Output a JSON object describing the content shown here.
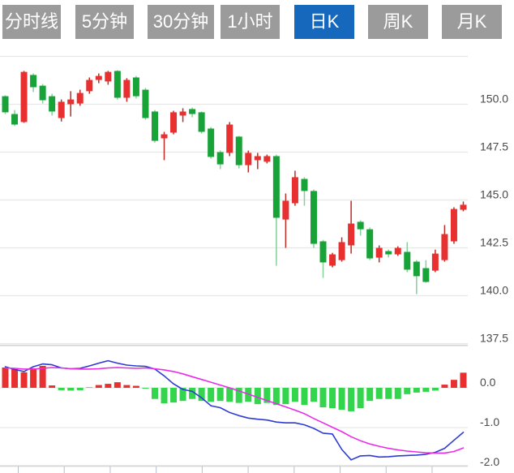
{
  "toolbar": {
    "tabs": [
      {
        "name": "tab-timeline",
        "label": "分时线",
        "active": false
      },
      {
        "name": "tab-5min",
        "label": "5分钟",
        "active": false
      },
      {
        "name": "tab-30min",
        "label": "30分钟",
        "active": false
      },
      {
        "name": "tab-1hour",
        "label": "1小时",
        "active": false
      },
      {
        "name": "tab-daily-k",
        "label": "日K",
        "active": true
      },
      {
        "name": "tab-weekly-k",
        "label": "周K",
        "active": false
      },
      {
        "name": "tab-monthly-k",
        "label": "月K",
        "active": false
      }
    ]
  },
  "colors": {
    "background": "#ffffff",
    "tab_active_bg": "#1568bb",
    "tab_inactive_bg": "#9b9b9b",
    "tab_text": "#ffffff",
    "up": "#e93030",
    "up_wick": "#bf2a25",
    "down": "#17a337",
    "down_wick": "#86cf98",
    "hist_pos": "#e93030",
    "hist_neg": "#33d54d",
    "dif_line": "#2d3bd4",
    "dea_line": "#ea2cea",
    "grid": "#e7e7e7",
    "border": "#d6d6d6",
    "tick": "#b9bec9",
    "axis_text": "#4a4a4a"
  },
  "chart_data": {
    "type": "candlestick",
    "title": "",
    "legend": "none",
    "grid": "horizontal-only",
    "price_axis_labels": [
      "150.0",
      "147.5",
      "145.0",
      "142.5",
      "140.0",
      "137.5"
    ],
    "price_gridlines": [
      152.5,
      150.0,
      147.5,
      145.0,
      142.5,
      140.0,
      137.5
    ],
    "price_axis_side": "right",
    "macd_axis_labels": [
      "0.0",
      "-1.0",
      "-2.0"
    ],
    "macd_gridline_values": [
      0,
      -1,
      -2
    ],
    "x_axis_tick_count": 10,
    "candles_ohlc": [
      [
        150.42,
        150.47,
        149.49,
        149.58
      ],
      [
        149.49,
        149.7,
        148.86,
        148.94
      ],
      [
        149.07,
        151.74,
        149.03,
        151.69
      ],
      [
        151.53,
        151.61,
        150.64,
        150.89
      ],
      [
        150.97,
        151.06,
        150.04,
        150.21
      ],
      [
        150.42,
        150.55,
        149.41,
        149.62
      ],
      [
        149.28,
        150.25,
        149.1,
        150.13
      ],
      [
        150.0,
        150.68,
        149.36,
        150.25
      ],
      [
        150.04,
        150.76,
        149.92,
        150.59
      ],
      [
        150.68,
        151.4,
        150.55,
        151.27
      ],
      [
        151.27,
        151.61,
        151.1,
        151.48
      ],
      [
        151.19,
        151.74,
        151.02,
        151.69
      ],
      [
        151.74,
        151.78,
        150.25,
        150.34
      ],
      [
        150.34,
        151.36,
        150.13,
        151.27
      ],
      [
        151.4,
        151.48,
        150.3,
        150.42
      ],
      [
        150.76,
        150.85,
        149.19,
        149.28
      ],
      [
        149.62,
        149.7,
        148.0,
        148.09
      ],
      [
        148.22,
        148.56,
        147.08,
        148.43
      ],
      [
        148.52,
        149.66,
        148.43,
        149.58
      ],
      [
        149.41,
        149.79,
        149.07,
        149.62
      ],
      [
        149.75,
        149.83,
        149.32,
        149.49
      ],
      [
        149.58,
        149.62,
        148.47,
        148.56
      ],
      [
        148.73,
        148.81,
        147.16,
        147.25
      ],
      [
        147.5,
        147.59,
        146.61,
        146.86
      ],
      [
        147.46,
        149.07,
        147.29,
        148.94
      ],
      [
        148.31,
        148.35,
        146.65,
        146.82
      ],
      [
        146.82,
        147.58,
        146.44,
        147.46
      ],
      [
        147.08,
        147.46,
        146.61,
        147.29
      ],
      [
        147.0,
        147.37,
        146.91,
        147.29
      ],
      [
        147.29,
        147.37,
        141.57,
        144.07
      ],
      [
        143.98,
        145.34,
        142.5,
        144.96
      ],
      [
        144.83,
        146.53,
        144.7,
        146.19
      ],
      [
        146.1,
        146.19,
        144.7,
        145.47
      ],
      [
        145.47,
        145.55,
        142.5,
        142.71
      ],
      [
        142.84,
        142.92,
        140.93,
        141.74
      ],
      [
        141.57,
        142.24,
        141.48,
        142.16
      ],
      [
        141.86,
        143.05,
        141.78,
        142.8
      ],
      [
        142.63,
        144.96,
        142.2,
        143.77
      ],
      [
        143.86,
        143.94,
        143.14,
        143.47
      ],
      [
        143.47,
        143.56,
        141.86,
        141.95
      ],
      [
        141.99,
        142.63,
        141.74,
        142.5
      ],
      [
        142.33,
        142.41,
        142.0,
        142.16
      ],
      [
        142.16,
        142.58,
        142.08,
        142.5
      ],
      [
        142.29,
        142.8,
        141.23,
        141.36
      ],
      [
        141.78,
        141.86,
        140.08,
        141.02
      ],
      [
        141.44,
        141.86,
        140.68,
        140.72
      ],
      [
        141.31,
        142.41,
        141.23,
        142.2
      ],
      [
        141.86,
        143.69,
        141.78,
        143.22
      ],
      [
        142.84,
        144.62,
        142.71,
        144.53
      ],
      [
        144.49,
        144.92,
        144.41,
        144.75
      ]
    ],
    "macd": {
      "histogram": [
        0.51,
        0.47,
        0.39,
        0.49,
        0.55,
        0.06,
        -0.06,
        -0.07,
        -0.06,
        0.01,
        0.07,
        0.1,
        0.14,
        0.07,
        0.05,
        -0.02,
        -0.28,
        -0.39,
        -0.37,
        -0.33,
        -0.28,
        -0.33,
        -0.35,
        -0.33,
        -0.35,
        -0.38,
        -0.35,
        -0.41,
        -0.38,
        -0.43,
        -0.41,
        -0.35,
        -0.43,
        -0.35,
        -0.49,
        -0.51,
        -0.55,
        -0.59,
        -0.51,
        -0.33,
        -0.28,
        -0.28,
        -0.28,
        -0.16,
        -0.12,
        -0.1,
        -0.07,
        0.08,
        0.2,
        0.38
      ],
      "dif": [
        0.53,
        0.46,
        0.41,
        0.53,
        0.6,
        0.58,
        0.5,
        0.48,
        0.49,
        0.55,
        0.62,
        0.68,
        0.62,
        0.57,
        0.55,
        0.54,
        0.47,
        0.3,
        0.1,
        -0.04,
        -0.09,
        -0.25,
        -0.45,
        -0.5,
        -0.62,
        -0.7,
        -0.76,
        -0.79,
        -0.81,
        -0.86,
        -0.88,
        -0.88,
        -0.93,
        -1.02,
        -1.14,
        -1.16,
        -1.55,
        -1.81,
        -1.71,
        -1.7,
        -1.74,
        -1.73,
        -1.71,
        -1.7,
        -1.69,
        -1.67,
        -1.62,
        -1.52,
        -1.32,
        -1.12
      ],
      "dea": [
        0.5,
        0.49,
        0.47,
        0.47,
        0.49,
        0.51,
        0.5,
        0.48,
        0.47,
        0.47,
        0.48,
        0.5,
        0.51,
        0.5,
        0.49,
        0.5,
        0.48,
        0.45,
        0.41,
        0.35,
        0.28,
        0.21,
        0.14,
        0.07,
        0.0,
        -0.08,
        -0.16,
        -0.24,
        -0.32,
        -0.4,
        -0.48,
        -0.56,
        -0.65,
        -0.77,
        -0.88,
        -0.99,
        -1.1,
        -1.23,
        -1.33,
        -1.41,
        -1.47,
        -1.52,
        -1.56,
        -1.59,
        -1.61,
        -1.63,
        -1.64,
        -1.64,
        -1.6,
        -1.51
      ]
    }
  }
}
